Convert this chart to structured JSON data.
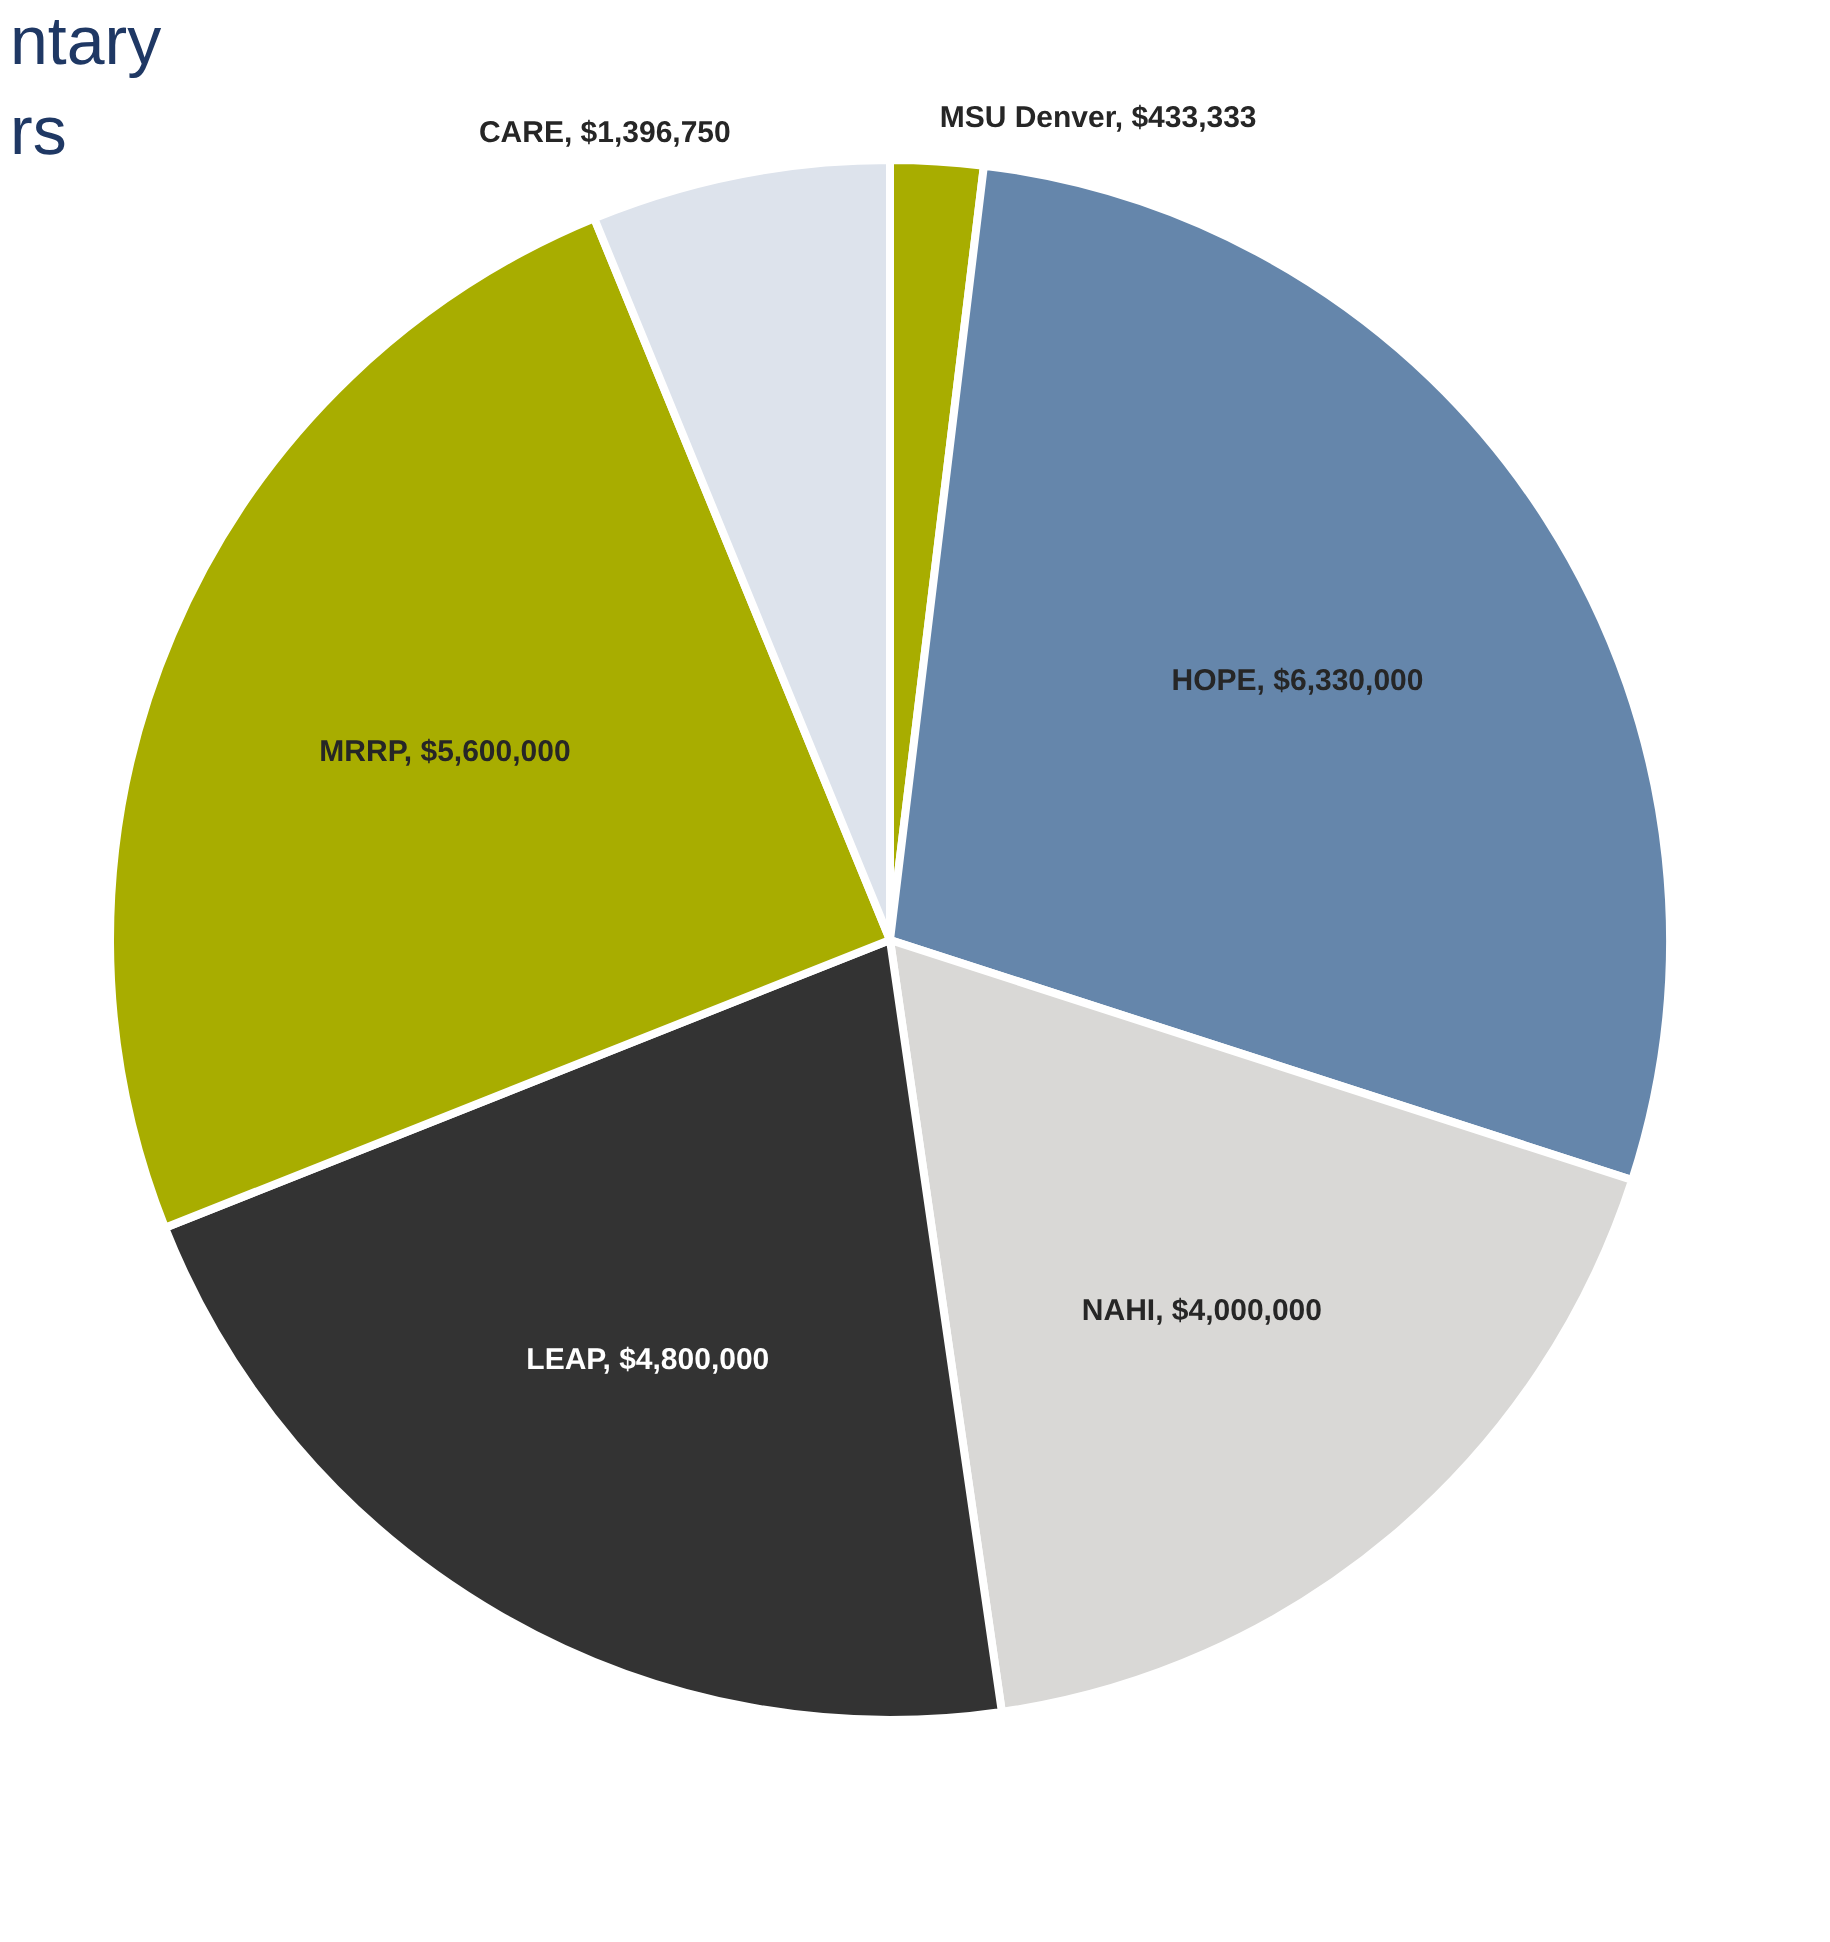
{
  "chart_data": {
    "type": "pie",
    "categories": [
      "MSU Denver",
      "HOPE",
      "NAHI",
      "LEAP",
      "MRRP",
      "CARE"
    ],
    "values": [
      433333,
      6330000,
      4000000,
      4800000,
      5600000,
      1396750
    ],
    "value_labels": [
      "$433,333",
      "$6,330,000",
      "$4,000,000",
      "$4,800,000",
      "$5,600,000",
      "$1,396,750"
    ],
    "colors": [
      "#a8ad00",
      "#6586ab",
      "#d9d8d6",
      "#333333",
      "#a8ad00",
      "#dde3ec"
    ],
    "annotations": [
      "ntary",
      "rs"
    ],
    "legend": false
  }
}
